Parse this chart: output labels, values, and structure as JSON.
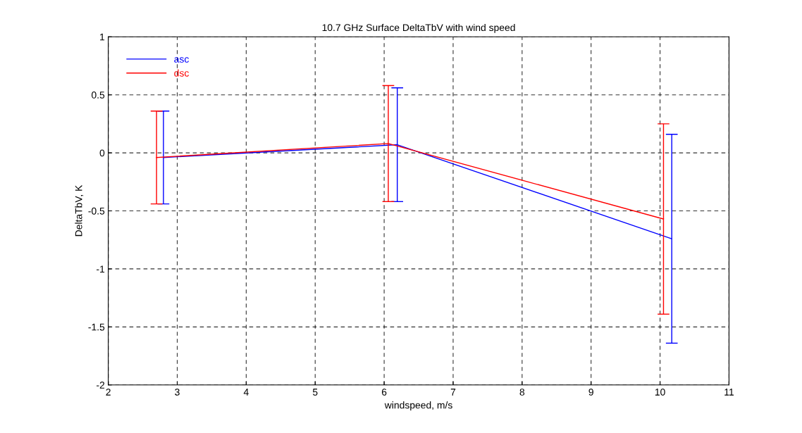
{
  "chart_data": {
    "type": "line",
    "title": "10.7 GHz Surface DeltaTbV with wind speed",
    "xlabel": "windspeed, m/s",
    "ylabel": "DeltaTbV, K",
    "series": [
      {
        "name": "asc",
        "color": "#0000ff",
        "x": [
          2.8,
          6.19,
          10.17
        ],
        "values": [
          -0.04,
          0.07,
          -0.74
        ],
        "errors": [
          0.4,
          0.49,
          0.9
        ]
      },
      {
        "name": "dsc",
        "color": "#ff0000",
        "x": [
          2.7,
          6.06,
          10.05
        ],
        "values": [
          -0.04,
          0.08,
          -0.57
        ],
        "errors": [
          0.4,
          0.5,
          0.82
        ]
      }
    ],
    "xlim": [
      2,
      11
    ],
    "xticks": [
      2,
      3,
      4,
      5,
      6,
      7,
      8,
      9,
      10,
      11
    ],
    "ylim": [
      -2,
      1
    ],
    "yticks": [
      -2,
      -1.5,
      -1,
      -0.5,
      0,
      0.5,
      1
    ],
    "grid": true,
    "legend": "top left",
    "marker": "none",
    "line_style": "solid"
  }
}
